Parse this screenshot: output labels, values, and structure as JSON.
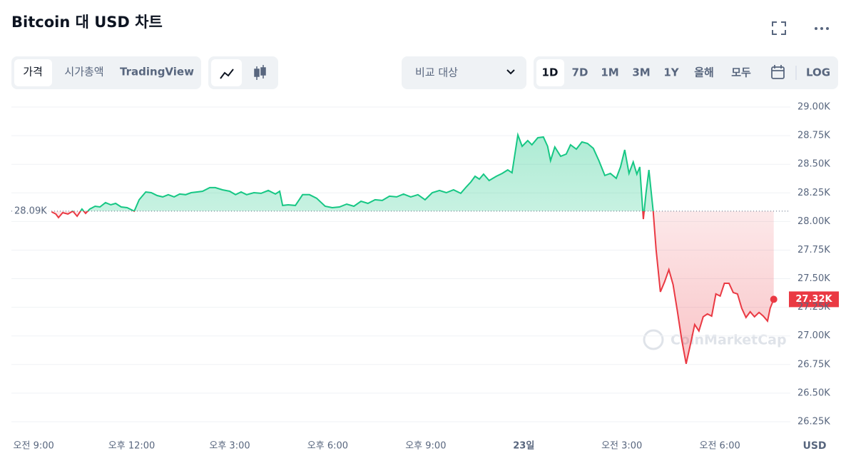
{
  "header": {
    "title": "Bitcoin 대 USD 차트"
  },
  "toolbar": {
    "tabs": [
      "가격",
      "시가총액",
      "TradingView"
    ],
    "compare": "비교 대상",
    "ranges": [
      "1D",
      "7D",
      "1M",
      "3M",
      "1Y",
      "올해",
      "모두"
    ],
    "log": "LOG"
  },
  "chart_data": {
    "type": "line",
    "x": [
      9.55,
      9.68,
      9.76,
      9.89,
      10.05,
      10.2,
      10.33,
      10.48,
      10.59,
      10.72,
      10.88,
      11.03,
      11.2,
      11.36,
      11.51,
      11.68,
      11.86,
      12.08,
      12.23,
      12.43,
      12.6,
      12.78,
      12.95,
      13.12,
      13.3,
      13.47,
      13.65,
      13.82,
      14.0,
      14.17,
      14.39,
      14.56,
      14.78,
      15.0,
      15.18,
      15.35,
      15.52,
      15.74,
      15.96,
      16.18,
      16.4,
      16.53,
      16.62,
      16.79,
      17.01,
      17.23,
      17.44,
      17.66,
      17.92,
      18.14,
      18.36,
      18.58,
      18.8,
      19.02,
      19.23,
      19.45,
      19.67,
      19.89,
      20.11,
      20.32,
      20.54,
      20.76,
      20.98,
      21.2,
      21.42,
      21.63,
      21.85,
      22.07,
      22.24,
      22.38,
      22.51,
      22.64,
      22.77,
      22.94,
      23.16,
      23.34,
      23.51,
      23.64,
      23.82,
      23.95,
      24.12,
      24.25,
      24.43,
      24.6,
      24.73,
      24.82,
      24.95,
      25.13,
      25.3,
      25.43,
      25.61,
      25.78,
      25.95,
      26.13,
      26.3,
      26.48,
      26.65,
      26.83,
      26.96,
      27.09,
      27.22,
      27.35,
      27.46,
      27.55,
      27.66,
      27.74,
      27.83,
      27.96,
      28.05,
      28.18,
      28.31,
      28.44,
      28.57,
      28.7,
      28.83,
      28.97,
      29.1,
      29.23,
      29.36,
      29.49,
      29.62,
      29.75,
      29.88,
      30.01,
      30.14,
      30.28,
      30.41,
      30.54,
      30.67,
      30.8,
      30.93,
      31.06,
      31.2,
      31.33,
      31.46,
      31.54,
      31.65
    ],
    "values": [
      28084,
      28065,
      28034,
      28077,
      28065,
      28090,
      28046,
      28109,
      28071,
      28109,
      28133,
      28127,
      28165,
      28146,
      28158,
      28127,
      28121,
      28090,
      28190,
      28258,
      28252,
      28227,
      28215,
      28234,
      28215,
      28240,
      28234,
      28252,
      28258,
      28264,
      28296,
      28296,
      28277,
      28264,
      28234,
      28258,
      28234,
      28252,
      28246,
      28271,
      28240,
      28264,
      28140,
      28146,
      28140,
      28234,
      28234,
      28203,
      28133,
      28121,
      28127,
      28152,
      28133,
      28177,
      28158,
      28190,
      28184,
      28221,
      28215,
      28240,
      28215,
      28234,
      28190,
      28252,
      28271,
      28252,
      28277,
      28246,
      28302,
      28345,
      28395,
      28370,
      28414,
      28358,
      28395,
      28420,
      28451,
      28426,
      28757,
      28657,
      28707,
      28670,
      28732,
      28738,
      28657,
      28532,
      28651,
      28570,
      28589,
      28670,
      28632,
      28695,
      28682,
      28639,
      28532,
      28402,
      28420,
      28377,
      28476,
      28626,
      28420,
      28520,
      28414,
      28476,
      28021,
      28246,
      28451,
      28090,
      27753,
      27385,
      27473,
      27579,
      27448,
      27217,
      26974,
      26756,
      26925,
      27099,
      27043,
      27167,
      27192,
      27173,
      27367,
      27348,
      27460,
      27460,
      27379,
      27367,
      27242,
      27161,
      27211,
      27167,
      27205,
      27173,
      27130,
      27242,
      27320
    ],
    "up_color": "#16c784",
    "down_color": "#ea3943",
    "reference_line": {
      "value": 28090,
      "label": "28.09K"
    },
    "last_price": {
      "value": 27320,
      "label": "27.32K"
    },
    "xlim": [
      8.32,
      31.7
    ],
    "xticks": [
      {
        "value": 9,
        "label": "오전 9:00"
      },
      {
        "value": 12,
        "label": "오후 12:00"
      },
      {
        "value": 15,
        "label": "오후 3:00"
      },
      {
        "value": 18,
        "label": "오후 6:00"
      },
      {
        "value": 21,
        "label": "오후 9:00"
      },
      {
        "value": 24,
        "label": "23일"
      },
      {
        "value": 27,
        "label": "오전 3:00"
      },
      {
        "value": 30,
        "label": "오전 6:00"
      }
    ],
    "ylim": [
      26200,
      29050
    ],
    "yticks": [
      {
        "value": 29000,
        "label": "29.00K"
      },
      {
        "value": 28750,
        "label": "28.75K"
      },
      {
        "value": 28500,
        "label": "28.50K"
      },
      {
        "value": 28250,
        "label": "28.25K"
      },
      {
        "value": 28000,
        "label": "28.00K"
      },
      {
        "value": 27750,
        "label": "27.75K"
      },
      {
        "value": 27500,
        "label": "27.50K"
      },
      {
        "value": 27250,
        "label": "27.25K"
      },
      {
        "value": 27000,
        "label": "27.00K"
      },
      {
        "value": 26750,
        "label": "26.75K"
      },
      {
        "value": 26500,
        "label": "26.50K"
      },
      {
        "value": 26250,
        "label": "26.25K"
      }
    ],
    "grid": true,
    "currency": "USD",
    "watermark": "CoinMarketCap"
  }
}
